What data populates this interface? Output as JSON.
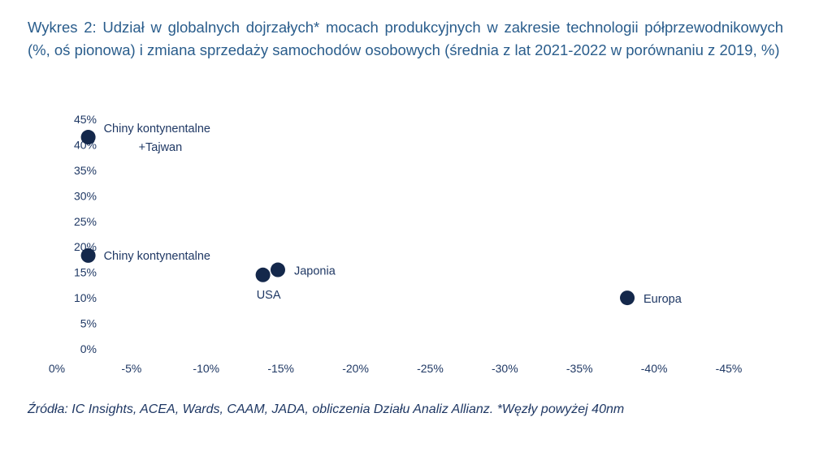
{
  "chart_data": {
    "type": "scatter",
    "title": "Wykres 2: Udział w globalnych dojrzałych* mocach produkcyjnych w zakresie technologii półprzewodnikowych (%, oś pionowa) i zmiana sprzedaży samochodów osobowych (średnia z lat 2021-2022 w porównaniu z 2019, %)",
    "x_ticks": [
      "0%",
      "-5%",
      "-10%",
      "-15%",
      "-20%",
      "-25%",
      "-30%",
      "-35%",
      "-40%",
      "-45%"
    ],
    "y_ticks": [
      "0%",
      "5%",
      "10%",
      "15%",
      "20%",
      "25%",
      "30%",
      "35%",
      "40%",
      "45%"
    ],
    "xlim": [
      0,
      -45
    ],
    "ylim": [
      0,
      45
    ],
    "x_reversed": true,
    "grid": false,
    "marker_color": "#14284b",
    "points": [
      {
        "label": "Chiny kontynentalne +Tajwan",
        "label_lines": [
          "Chiny kontynentalne",
          "+Tajwan"
        ],
        "x": -2.1,
        "y": 41.5
      },
      {
        "label": "Chiny kontynentalne",
        "label_lines": [
          "Chiny kontynentalne"
        ],
        "x": -2.1,
        "y": 18.3
      },
      {
        "label": "USA",
        "label_lines": [
          "USA"
        ],
        "x": -13.8,
        "y": 14.5
      },
      {
        "label": "Japonia",
        "label_lines": [
          "Japonia"
        ],
        "x": -14.8,
        "y": 15.5
      },
      {
        "label": "Europa",
        "label_lines": [
          "Europa"
        ],
        "x": -38.2,
        "y": 10.0
      }
    ]
  },
  "source": "Źródła: IC Insights, ACEA, Wards, CAAM, JADA, obliczenia Działu Analiz Allianz. *Węzły powyżej 40nm"
}
